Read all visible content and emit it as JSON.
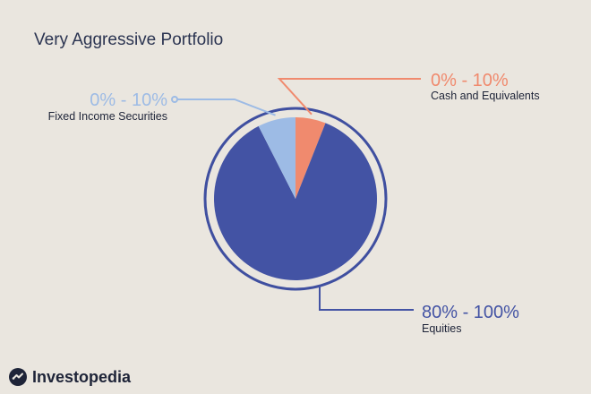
{
  "title": "Very Aggressive Portfolio",
  "brand": {
    "name": "Investopedia",
    "logo_icon": "investopedia-logo-icon"
  },
  "colors": {
    "background": "#eae6df",
    "equities": "#4353a4",
    "fixed_income": "#9dbbe5",
    "cash": "#f08a6e",
    "title": "#2b3451"
  },
  "chart_data": {
    "type": "pie",
    "title": "Very Aggressive Portfolio",
    "slices": [
      {
        "label": "Cash and Equivalents",
        "range": "0% - 10%",
        "value": 6,
        "color": "#f08a6e",
        "range_color": "#f08a6e"
      },
      {
        "label": "Equities",
        "range": "80% - 100%",
        "value": 86.5,
        "color": "#4353a4",
        "range_color": "#4353a4"
      },
      {
        "label": "Fixed Income Securities",
        "range": "0% - 10%",
        "value": 7.5,
        "color": "#9dbbe5",
        "range_color": "#9dbbe5"
      }
    ]
  }
}
